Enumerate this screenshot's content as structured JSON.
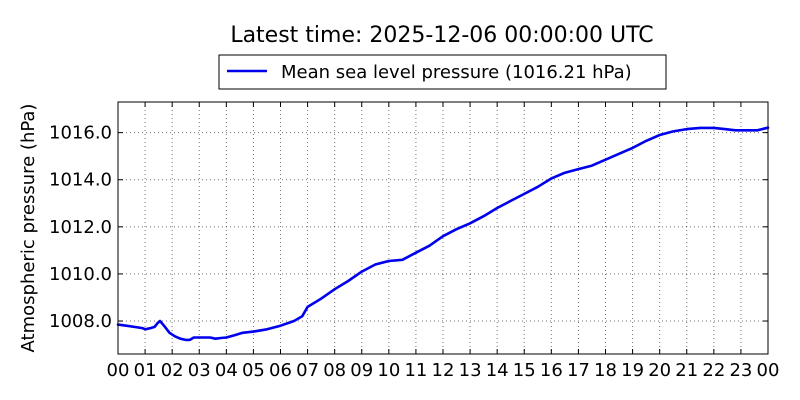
{
  "chart_data": {
    "type": "line",
    "title": "Latest time: 2025-12-06 00:00:00 UTC",
    "ylabel": "Atmospheric pressure (hPa)",
    "xlabel": "",
    "x_tick_labels": [
      "00",
      "01",
      "02",
      "03",
      "04",
      "05",
      "06",
      "07",
      "08",
      "09",
      "10",
      "11",
      "12",
      "13",
      "14",
      "15",
      "16",
      "17",
      "18",
      "19",
      "20",
      "21",
      "22",
      "23",
      "00"
    ],
    "y_ticks": [
      1008.0,
      1010.0,
      1012.0,
      1014.0,
      1016.0
    ],
    "y_tick_labels": [
      "1008.0",
      "1010.0",
      "1012.0",
      "1014.0",
      "1016.0"
    ],
    "xlim": [
      0,
      24
    ],
    "ylim": [
      1006.6,
      1017.3
    ],
    "grid": true,
    "legend": "top-center, outside plot",
    "series": [
      {
        "name": "Mean sea level pressure (1016.21 hPa)",
        "color": "#0000ee",
        "x": [
          0,
          0.3,
          0.6,
          0.9,
          1.0,
          1.2,
          1.35,
          1.45,
          1.55,
          1.7,
          1.9,
          2.1,
          2.3,
          2.5,
          2.65,
          2.8,
          3.0,
          3.2,
          3.4,
          3.6,
          3.8,
          4.0,
          4.3,
          4.6,
          5.0,
          5.5,
          6.0,
          6.5,
          6.8,
          7.0,
          7.5,
          8.0,
          8.5,
          9.0,
          9.5,
          10.0,
          10.5,
          11.0,
          11.5,
          12.0,
          12.5,
          13.0,
          13.5,
          14.0,
          14.5,
          15.0,
          15.5,
          16.0,
          16.5,
          17.0,
          17.5,
          18.0,
          18.5,
          19.0,
          19.5,
          20.0,
          20.5,
          21.0,
          21.5,
          22.0,
          22.4,
          22.8,
          23.2,
          23.6,
          24.0
        ],
        "y": [
          1007.85,
          1007.8,
          1007.75,
          1007.7,
          1007.65,
          1007.7,
          1007.75,
          1007.9,
          1008.0,
          1007.8,
          1007.5,
          1007.35,
          1007.25,
          1007.2,
          1007.2,
          1007.3,
          1007.3,
          1007.3,
          1007.3,
          1007.25,
          1007.28,
          1007.3,
          1007.4,
          1007.5,
          1007.55,
          1007.65,
          1007.8,
          1008.0,
          1008.2,
          1008.6,
          1008.95,
          1009.35,
          1009.7,
          1010.1,
          1010.4,
          1010.55,
          1010.6,
          1010.9,
          1011.2,
          1011.6,
          1011.9,
          1012.15,
          1012.45,
          1012.8,
          1013.1,
          1013.4,
          1013.7,
          1014.05,
          1014.3,
          1014.45,
          1014.6,
          1014.85,
          1015.1,
          1015.35,
          1015.65,
          1015.9,
          1016.05,
          1016.15,
          1016.2,
          1016.2,
          1016.15,
          1016.1,
          1016.1,
          1016.1,
          1016.21
        ]
      }
    ]
  }
}
